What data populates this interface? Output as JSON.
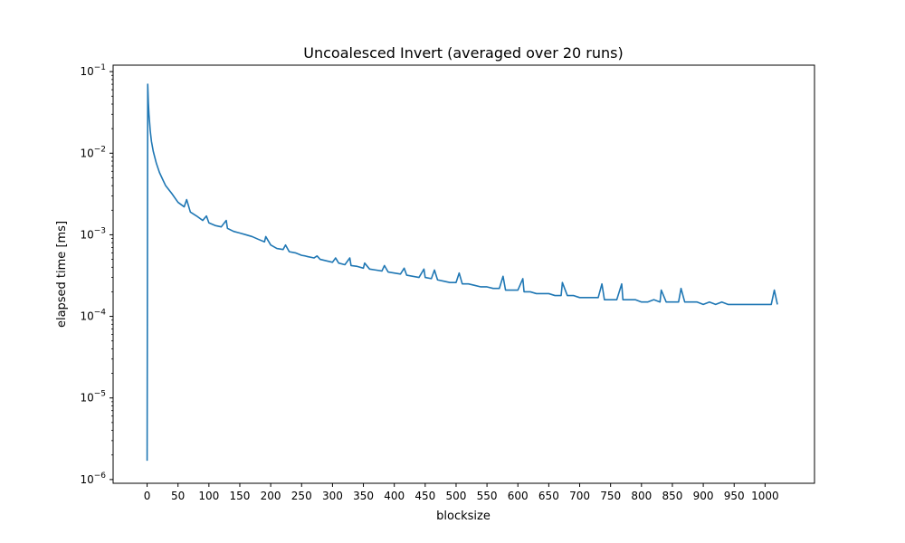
{
  "chart_data": {
    "type": "line",
    "title": "Uncoalesced Invert (averaged over 20 runs)",
    "xlabel": "blocksize",
    "ylabel": "elapsed time [ms]",
    "x_scale": "linear",
    "y_scale": "log",
    "xlim": [
      -55,
      1080
    ],
    "ylim": [
      9e-07,
      0.12
    ],
    "x_ticks": [
      0,
      50,
      100,
      150,
      200,
      250,
      300,
      350,
      400,
      450,
      500,
      550,
      600,
      650,
      700,
      750,
      800,
      850,
      900,
      950,
      1000
    ],
    "y_ticks": [
      {
        "value": 1e-06,
        "base": "10",
        "exp": "−6"
      },
      {
        "value": 1e-05,
        "base": "10",
        "exp": "−5"
      },
      {
        "value": 0.0001,
        "base": "10",
        "exp": "−4"
      },
      {
        "value": 0.001,
        "base": "10",
        "exp": "−3"
      },
      {
        "value": 0.01,
        "base": "10",
        "exp": "−2"
      },
      {
        "value": 0.1,
        "base": "10",
        "exp": "−1"
      }
    ],
    "grid": false,
    "line_color": "#1f77b4",
    "series": [
      {
        "x": [
          0,
          1,
          2,
          3,
          4,
          5,
          7,
          10,
          15,
          20,
          25,
          30,
          40,
          50,
          60,
          64,
          70,
          80,
          90,
          96,
          100,
          110,
          120,
          128,
          130,
          140,
          150,
          160,
          170,
          180,
          190,
          192,
          200,
          210,
          220,
          224,
          230,
          240,
          250,
          256,
          260,
          270,
          275,
          280,
          290,
          300,
          305,
          310,
          320,
          328,
          330,
          340,
          350,
          352,
          360,
          370,
          380,
          384,
          390,
          400,
          410,
          416,
          420,
          430,
          440,
          448,
          450,
          460,
          465,
          470,
          480,
          490,
          500,
          505,
          510,
          520,
          530,
          540,
          550,
          560,
          570,
          576,
          580,
          590,
          600,
          608,
          610,
          620,
          630,
          640,
          650,
          660,
          670,
          672,
          680,
          690,
          700,
          710,
          720,
          730,
          736,
          740,
          750,
          760,
          768,
          770,
          780,
          790,
          800,
          810,
          820,
          830,
          832,
          840,
          850,
          860,
          864,
          870,
          880,
          890,
          900,
          910,
          920,
          930,
          940,
          950,
          960,
          970,
          980,
          990,
          1000,
          1010,
          1015,
          1020
        ],
        "y": [
          1.7e-06,
          0.07,
          0.042,
          0.03,
          0.024,
          0.019,
          0.014,
          0.0105,
          0.0075,
          0.0058,
          0.0048,
          0.004,
          0.0032,
          0.0025,
          0.0022,
          0.0027,
          0.0019,
          0.0017,
          0.0015,
          0.0017,
          0.0014,
          0.0013,
          0.00125,
          0.0015,
          0.0012,
          0.0011,
          0.00105,
          0.001,
          0.00095,
          0.00088,
          0.00082,
          0.00095,
          0.00075,
          0.00068,
          0.00066,
          0.00075,
          0.00062,
          0.0006,
          0.00056,
          0.00055,
          0.00054,
          0.00052,
          0.00055,
          0.0005,
          0.00048,
          0.00046,
          0.00052,
          0.00045,
          0.00043,
          0.00052,
          0.00042,
          0.00041,
          0.00039,
          0.00045,
          0.00038,
          0.00037,
          0.00036,
          0.00042,
          0.00035,
          0.00034,
          0.00033,
          0.00039,
          0.00032,
          0.00031,
          0.0003,
          0.00038,
          0.0003,
          0.00029,
          0.00037,
          0.00028,
          0.00027,
          0.00026,
          0.00026,
          0.00034,
          0.00025,
          0.00025,
          0.00024,
          0.00023,
          0.00023,
          0.00022,
          0.00022,
          0.00031,
          0.00021,
          0.00021,
          0.00021,
          0.00029,
          0.0002,
          0.0002,
          0.00019,
          0.00019,
          0.00019,
          0.00018,
          0.00018,
          0.00026,
          0.00018,
          0.00018,
          0.00017,
          0.00017,
          0.00017,
          0.00017,
          0.00025,
          0.00016,
          0.00016,
          0.00016,
          0.00025,
          0.00016,
          0.00016,
          0.00016,
          0.00015,
          0.00015,
          0.00016,
          0.00015,
          0.00021,
          0.00015,
          0.00015,
          0.00015,
          0.00022,
          0.00015,
          0.00015,
          0.00015,
          0.00014,
          0.00015,
          0.00014,
          0.00015,
          0.00014,
          0.00014,
          0.00014,
          0.00014,
          0.00014,
          0.00014,
          0.00014,
          0.00014,
          0.00021,
          0.00014
        ]
      }
    ]
  }
}
